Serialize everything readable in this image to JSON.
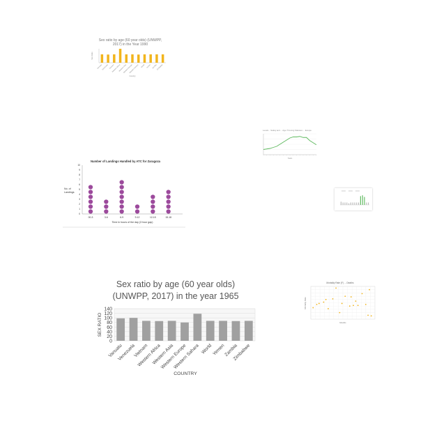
{
  "chart_data": [
    {
      "type": "bar",
      "title_lines": [
        "Sex ratio by age (60 year olds) (UNWPP,",
        "2017) in the Year 1990"
      ],
      "xlabel": "Country",
      "ylabel": "Sex Ratio",
      "categories": [
        "Vanuatu",
        "Venezuela",
        "Vietnam",
        "Western Africa",
        "Western Asia",
        "Western Europe",
        "Western Sahara",
        "World",
        "Yemen",
        "Zambia",
        "Zimbabwe"
      ],
      "values": [
        90,
        88,
        90,
        150,
        90,
        90,
        88,
        90,
        90,
        90,
        90
      ],
      "ylim": [
        0,
        150
      ],
      "color": "#f2b51d"
    },
    {
      "type": "line",
      "title": "Levels... Safety and ... Age 70 Living Statuses ... Europe",
      "xlabel": "Years",
      "ylabel": "",
      "values": [
        10,
        11,
        12,
        14,
        16,
        20,
        24,
        28,
        32,
        34,
        34,
        35,
        33,
        33,
        27,
        23,
        19
      ],
      "ylim": [
        0,
        40
      ],
      "color": "#5cb85c"
    },
    {
      "type": "scatter",
      "title": "Number of Landings Handled by ATC for Zaragoza",
      "xlabel": "Time in hours of the day (3 hour gap)",
      "ylabel": "No. of Landings",
      "categories": [
        "00-3",
        "3-6",
        "6-9",
        "9-12",
        "12-15",
        "15-18"
      ],
      "values": [
        6,
        3,
        7,
        2,
        4,
        5
      ],
      "yticks": [
        "0",
        "1",
        "2",
        "3",
        "4",
        "5",
        "6",
        "7",
        "8",
        "9",
        "10"
      ],
      "ylim": [
        0,
        10
      ],
      "color": "#9c4a9c"
    },
    {
      "type": "bar",
      "title": "",
      "values": [
        4,
        3,
        3,
        3,
        2,
        3,
        3,
        3,
        3,
        3,
        11,
        12,
        10,
        3,
        3
      ],
      "highlight": [
        10,
        11,
        12
      ],
      "ylim": [
        0,
        14
      ],
      "color": "#b8b8b8",
      "highlight_color": "#5cb85c"
    },
    {
      "type": "bar",
      "title_lines": [
        "Sex ratio by age (60 year olds)",
        "(UNWPP, 2017) in the year 1965"
      ],
      "xlabel": "COUNTRY",
      "ylabel": "SEX RATIO",
      "categories": [
        "Vanuatu",
        "Venezuela",
        "Vietnam",
        "Western Africa",
        "Western Asia",
        "Western Europe",
        "Western Sahara",
        "World",
        "Yemen",
        "Zambia",
        "Zimbabwe"
      ],
      "values": [
        98,
        100,
        87,
        86,
        87,
        80,
        118,
        87,
        87,
        86,
        87
      ],
      "yticks": [
        0,
        20,
        40,
        60,
        80,
        100,
        120,
        140
      ],
      "ylim": [
        0,
        140
      ],
      "color": "#a0a0a0"
    },
    {
      "type": "scatter",
      "title": "Mortality Rate (F) ... Deaths",
      "xlabel": "Months",
      "ylabel": "Mortality Rate",
      "points": [
        [
          0.5,
          3.5
        ],
        [
          1.3,
          4.5
        ],
        [
          1.8,
          4.8
        ],
        [
          2.8,
          5.2
        ],
        [
          3.3,
          6.0
        ],
        [
          3.8,
          3.2
        ],
        [
          4.8,
          6.2
        ],
        [
          5.5,
          9.5
        ],
        [
          6.3,
          2.0
        ],
        [
          6.8,
          4.8
        ],
        [
          7.5,
          7.0
        ],
        [
          8.5,
          4.0
        ],
        [
          8.8,
          6.8
        ],
        [
          9.3,
          4.2
        ],
        [
          9.8,
          5.5
        ],
        [
          10.3,
          4.2
        ],
        [
          11.2,
          7.8
        ],
        [
          12.0,
          4.5
        ],
        [
          12.8,
          9.0
        ],
        [
          12.5,
          1.2
        ],
        [
          13.2,
          1.0
        ]
      ],
      "xlim": [
        0,
        14
      ],
      "ylim": [
        0,
        10
      ],
      "color": "#f2b51d"
    }
  ]
}
